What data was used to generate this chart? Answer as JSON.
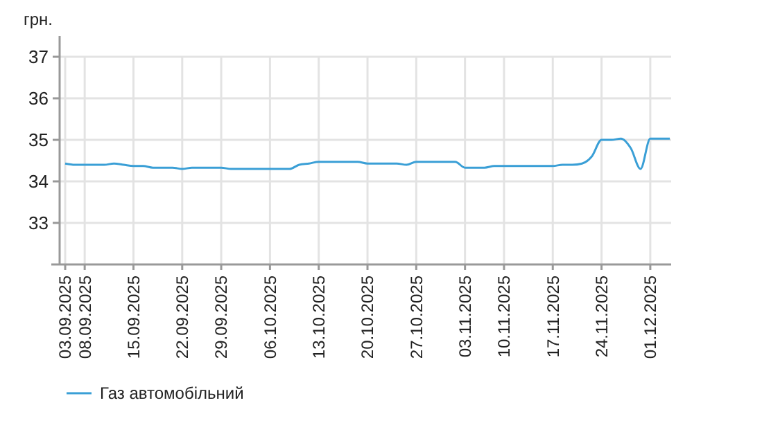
{
  "chart_data": {
    "type": "line",
    "ylabel": "грн.",
    "categories": [
      "03.09.2025",
      null,
      "08.09.2025",
      null,
      null,
      null,
      null,
      "15.09.2025",
      null,
      null,
      null,
      null,
      "22.09.2025",
      null,
      null,
      null,
      "29.09.2025",
      null,
      null,
      null,
      null,
      "06.10.2025",
      null,
      null,
      null,
      null,
      "13.10.2025",
      null,
      null,
      null,
      null,
      "20.10.2025",
      null,
      null,
      null,
      null,
      "27.10.2025",
      null,
      null,
      null,
      null,
      "03.11.2025",
      null,
      null,
      null,
      "10.11.2025",
      null,
      null,
      null,
      null,
      "17.11.2025",
      null,
      null,
      null,
      null,
      "24.11.2025",
      null,
      null,
      null,
      null,
      "01.12.2025",
      null,
      null
    ],
    "series": [
      {
        "name": "Газ автомобільний",
        "color": "#3a9fd6",
        "values": [
          34.43,
          34.4,
          34.4,
          34.4,
          34.4,
          34.43,
          34.4,
          34.37,
          34.37,
          34.33,
          34.33,
          34.33,
          34.3,
          34.33,
          34.33,
          34.33,
          34.33,
          34.3,
          34.3,
          34.3,
          34.3,
          34.3,
          34.3,
          34.3,
          34.4,
          34.43,
          34.47,
          34.47,
          34.47,
          34.47,
          34.47,
          34.43,
          34.43,
          34.43,
          34.43,
          34.4,
          34.47,
          34.47,
          34.47,
          34.47,
          34.47,
          34.33,
          34.33,
          34.33,
          34.37,
          34.37,
          34.37,
          34.37,
          34.37,
          34.37,
          34.37,
          34.4,
          34.4,
          34.43,
          34.6,
          35.0,
          35.0,
          35.03,
          34.8,
          34.3,
          35.03,
          35.03,
          35.03
        ]
      }
    ],
    "ylim": [
      32,
      37.5
    ],
    "yticks": [
      33,
      34,
      35,
      36,
      37
    ],
    "grid": true,
    "legend": "bottom left",
    "marker": "none",
    "line_style": "solid"
  }
}
